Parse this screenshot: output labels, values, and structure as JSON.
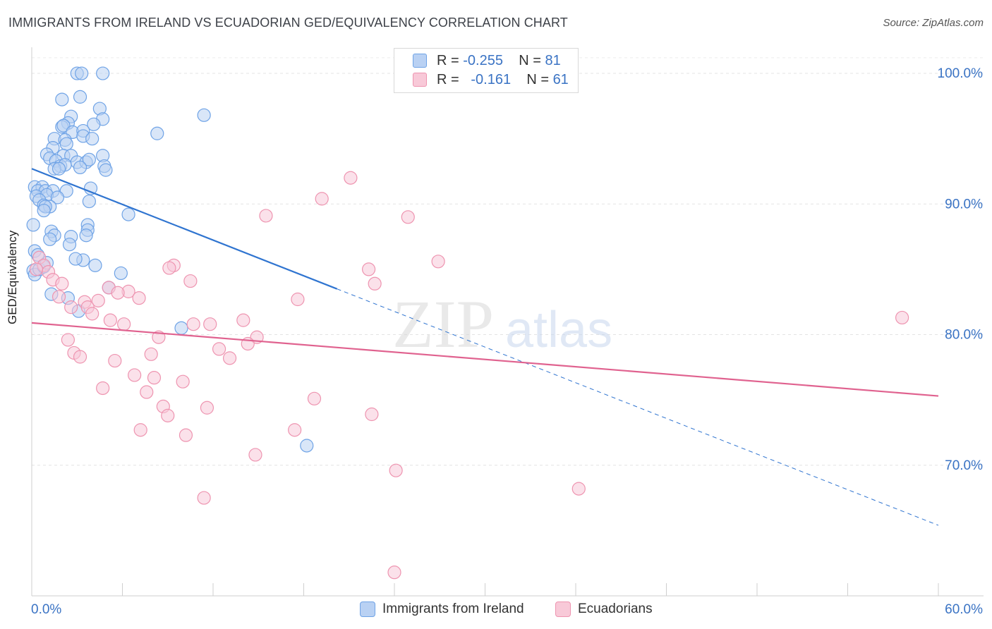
{
  "title": "IMMIGRANTS FROM IRELAND VS ECUADORIAN GED/EQUIVALENCY CORRELATION CHART",
  "source": "Source: ZipAtlas.com",
  "watermark": {
    "zip": "ZIP",
    "atlas": "atlas"
  },
  "legend_stats": [
    {
      "r_label": "R =",
      "r_value": "-0.255",
      "n_label": "N =",
      "n_value": "81"
    },
    {
      "r_label": "R =",
      "r_value": "-0.161",
      "n_label": "N =",
      "n_value": "61"
    }
  ],
  "chart_data": {
    "type": "scatter",
    "title": "IMMIGRANTS FROM IRELAND VS ECUADORIAN GED/EQUIVALENCY CORRELATION CHART",
    "xlabel": "",
    "ylabel": "GED/Equivalency",
    "xlim": [
      0,
      60
    ],
    "ylim": [
      60,
      102
    ],
    "x_tick_labels": [
      "0.0%",
      "60.0%"
    ],
    "y_ticks": [
      70,
      80,
      90,
      100
    ],
    "y_tick_labels": [
      "70.0%",
      "80.0%",
      "90.0%",
      "100.0%"
    ],
    "grid": true,
    "legend_position": "top-center",
    "series": [
      {
        "name": "Immigrants from Ireland",
        "color": "#6fa3e6",
        "fill": "#b9d1f3",
        "line_color": "#2f74d0",
        "r": -0.255,
        "n": 81,
        "trend": {
          "x0": 0,
          "y0": 92.7,
          "x1": 20.2,
          "y1": 83.5,
          "dash_to_x": 60,
          "dash_to_y": 65.4
        },
        "points": [
          [
            3.0,
            100
          ],
          [
            3.3,
            100
          ],
          [
            4.7,
            100
          ],
          [
            2.0,
            98
          ],
          [
            3.2,
            98.2
          ],
          [
            4.5,
            97.3
          ],
          [
            2.6,
            96.7
          ],
          [
            4.7,
            96.5
          ],
          [
            11.4,
            96.8
          ],
          [
            2.4,
            96.2
          ],
          [
            2.0,
            95.9
          ],
          [
            2.1,
            96.0
          ],
          [
            4.1,
            96.1
          ],
          [
            2.7,
            95.5
          ],
          [
            3.4,
            95.6
          ],
          [
            8.3,
            95.4
          ],
          [
            1.5,
            95.0
          ],
          [
            2.2,
            94.9
          ],
          [
            3.4,
            95.2
          ],
          [
            4.0,
            95.0
          ],
          [
            1.4,
            94.3
          ],
          [
            2.3,
            94.6
          ],
          [
            1.0,
            93.8
          ],
          [
            2.1,
            93.7
          ],
          [
            2.6,
            93.7
          ],
          [
            4.7,
            93.7
          ],
          [
            1.2,
            93.5
          ],
          [
            1.6,
            93.3
          ],
          [
            3.0,
            93.2
          ],
          [
            3.6,
            93.2
          ],
          [
            3.8,
            93.4
          ],
          [
            1.9,
            92.9
          ],
          [
            2.2,
            93.0
          ],
          [
            3.2,
            92.8
          ],
          [
            4.8,
            92.9
          ],
          [
            1.5,
            92.7
          ],
          [
            1.8,
            92.7
          ],
          [
            4.9,
            92.6
          ],
          [
            0.2,
            91.3
          ],
          [
            0.7,
            91.3
          ],
          [
            0.4,
            91.0
          ],
          [
            0.9,
            91.0
          ],
          [
            1.4,
            91.0
          ],
          [
            2.3,
            91.0
          ],
          [
            3.9,
            91.2
          ],
          [
            0.3,
            90.6
          ],
          [
            1.0,
            90.7
          ],
          [
            1.7,
            90.5
          ],
          [
            0.5,
            90.3
          ],
          [
            3.8,
            90.2
          ],
          [
            0.8,
            89.9
          ],
          [
            1.2,
            89.8
          ],
          [
            0.9,
            89.8
          ],
          [
            0.8,
            89.5
          ],
          [
            6.4,
            89.2
          ],
          [
            0.1,
            88.4
          ],
          [
            3.7,
            88.4
          ],
          [
            1.3,
            87.9
          ],
          [
            3.7,
            88.0
          ],
          [
            1.5,
            87.6
          ],
          [
            2.6,
            87.5
          ],
          [
            3.6,
            87.6
          ],
          [
            1.2,
            87.3
          ],
          [
            2.5,
            86.9
          ],
          [
            0.2,
            86.4
          ],
          [
            3.4,
            85.7
          ],
          [
            4.2,
            85.3
          ],
          [
            0.1,
            84.9
          ],
          [
            5.9,
            84.7
          ],
          [
            0.2,
            84.6
          ],
          [
            5.1,
            83.6
          ],
          [
            1.3,
            83.1
          ],
          [
            2.4,
            82.8
          ],
          [
            3.1,
            81.8
          ],
          [
            9.9,
            80.5
          ],
          [
            18.2,
            71.5
          ],
          [
            0.5,
            85.0
          ],
          [
            0.8,
            85.2
          ],
          [
            1.0,
            85.5
          ],
          [
            2.9,
            85.8
          ],
          [
            0.4,
            86.1
          ]
        ]
      },
      {
        "name": "Ecuadorians",
        "color": "#ee94b0",
        "fill": "#f8c9d8",
        "line_color": "#e0628f",
        "r": -0.161,
        "n": 61,
        "trend": {
          "x0": 0,
          "y0": 80.9,
          "x1": 60,
          "y1": 75.3
        },
        "points": [
          [
            21.1,
            92.0
          ],
          [
            19.2,
            90.4
          ],
          [
            15.5,
            89.1
          ],
          [
            24.9,
            89.0
          ],
          [
            26.9,
            85.6
          ],
          [
            0.5,
            85.9
          ],
          [
            0.8,
            85.3
          ],
          [
            1.1,
            84.8
          ],
          [
            9.4,
            85.3
          ],
          [
            9.1,
            85.1
          ],
          [
            22.3,
            85.0
          ],
          [
            1.4,
            84.2
          ],
          [
            2.0,
            83.9
          ],
          [
            10.5,
            84.1
          ],
          [
            22.7,
            83.9
          ],
          [
            5.1,
            83.6
          ],
          [
            6.4,
            83.3
          ],
          [
            5.7,
            83.2
          ],
          [
            1.8,
            82.9
          ],
          [
            7.1,
            82.8
          ],
          [
            3.5,
            82.5
          ],
          [
            4.4,
            82.6
          ],
          [
            17.6,
            82.7
          ],
          [
            3.7,
            82.1
          ],
          [
            2.6,
            82.1
          ],
          [
            4.0,
            81.6
          ],
          [
            5.2,
            81.1
          ],
          [
            14.0,
            81.1
          ],
          [
            6.1,
            80.8
          ],
          [
            10.7,
            80.8
          ],
          [
            11.8,
            80.8
          ],
          [
            57.6,
            81.3
          ],
          [
            2.4,
            79.6
          ],
          [
            8.4,
            79.8
          ],
          [
            14.9,
            79.8
          ],
          [
            14.3,
            79.3
          ],
          [
            12.4,
            78.9
          ],
          [
            2.8,
            78.6
          ],
          [
            7.9,
            78.5
          ],
          [
            3.2,
            78.3
          ],
          [
            5.5,
            78.0
          ],
          [
            13.1,
            78.2
          ],
          [
            6.8,
            76.9
          ],
          [
            8.1,
            76.7
          ],
          [
            10.0,
            76.4
          ],
          [
            4.7,
            75.9
          ],
          [
            7.6,
            75.6
          ],
          [
            18.7,
            75.1
          ],
          [
            8.7,
            74.5
          ],
          [
            11.6,
            74.4
          ],
          [
            22.5,
            73.9
          ],
          [
            9.0,
            73.8
          ],
          [
            7.2,
            72.7
          ],
          [
            17.4,
            72.7
          ],
          [
            10.2,
            72.3
          ],
          [
            14.8,
            70.8
          ],
          [
            24.1,
            69.6
          ],
          [
            36.2,
            68.2
          ],
          [
            11.4,
            67.5
          ],
          [
            24.0,
            61.8
          ],
          [
            0.3,
            85.0
          ]
        ]
      }
    ]
  }
}
